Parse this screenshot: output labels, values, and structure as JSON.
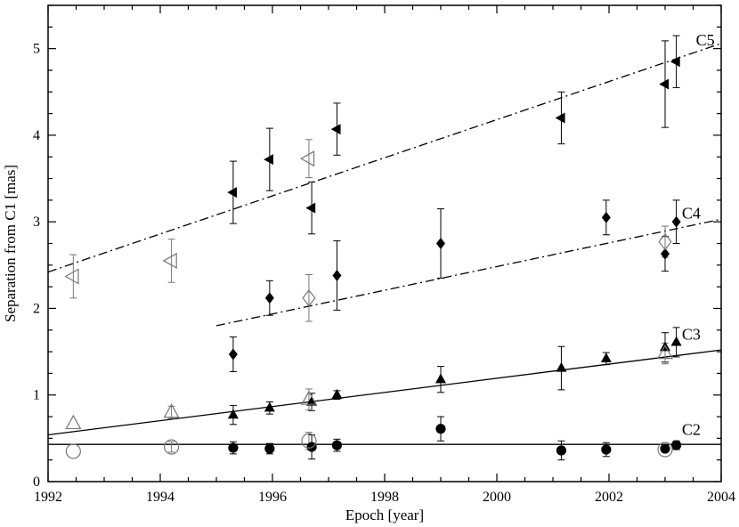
{
  "chart_data": {
    "type": "scatter",
    "title": "",
    "xlabel": "Epoch [year]",
    "ylabel": "Separation from C1 [mas]",
    "xlim": [
      1992,
      2004
    ],
    "ylim": [
      0,
      5.5
    ],
    "xticks": [
      1992,
      1994,
      1996,
      1998,
      2000,
      2002,
      2004
    ],
    "xtick_labels": [
      "1992",
      "1994",
      "1996",
      "1998",
      "2000",
      "2002",
      "2004"
    ],
    "yticks": [
      0,
      1,
      2,
      3,
      4,
      5
    ],
    "ytick_labels": [
      "0",
      "1",
      "2",
      "3",
      "4",
      "5"
    ],
    "grid": false,
    "legend": "none",
    "series": [
      {
        "name": "C2",
        "color": "#000000",
        "marker": "circle",
        "label_position": [
          2003.3,
          0.6
        ],
        "fit_line": {
          "style": "solid",
          "x": [
            1992,
            2004
          ],
          "y": [
            0.43,
            0.43
          ]
        },
        "points": [
          {
            "x": 1995.3,
            "y": 0.39,
            "err": 0.07,
            "filled": true
          },
          {
            "x": 1995.95,
            "y": 0.38,
            "err": 0.06,
            "filled": true
          },
          {
            "x": 1996.7,
            "y": 0.4,
            "err": 0.14,
            "filled": true
          },
          {
            "x": 1997.15,
            "y": 0.42,
            "err": 0.07,
            "filled": true
          },
          {
            "x": 1999.0,
            "y": 0.61,
            "err": 0.14,
            "filled": true
          },
          {
            "x": 2001.15,
            "y": 0.36,
            "err": 0.11,
            "filled": true
          },
          {
            "x": 2001.95,
            "y": 0.37,
            "err": 0.08,
            "filled": true
          },
          {
            "x": 2003.0,
            "y": 0.38,
            "err": 0.04,
            "filled": true
          },
          {
            "x": 2003.2,
            "y": 0.42,
            "err": 0.05,
            "filled": true
          },
          {
            "x": 1992.45,
            "y": 0.35,
            "err": 0.0,
            "filled": false
          },
          {
            "x": 1994.2,
            "y": 0.4,
            "err": 0.06,
            "filled": false
          },
          {
            "x": 1996.65,
            "y": 0.47,
            "err": 0.1,
            "filled": false
          },
          {
            "x": 2003.0,
            "y": 0.37,
            "err": 0.0,
            "filled": false
          }
        ]
      },
      {
        "name": "C3",
        "color": "#000000",
        "marker": "triangle-up",
        "label_position": [
          2003.3,
          1.7
        ],
        "fit_line": {
          "style": "solid",
          "x": [
            1992,
            2004
          ],
          "y": [
            0.54,
            1.52
          ]
        },
        "points": [
          {
            "x": 1995.3,
            "y": 0.77,
            "err": 0.11,
            "filled": true
          },
          {
            "x": 1995.95,
            "y": 0.85,
            "err": 0.07,
            "filled": true
          },
          {
            "x": 1996.7,
            "y": 0.92,
            "err": 0.1,
            "filled": true
          },
          {
            "x": 1997.15,
            "y": 1.0,
            "err": 0.05,
            "filled": true
          },
          {
            "x": 1999.0,
            "y": 1.18,
            "err": 0.15,
            "filled": true
          },
          {
            "x": 2001.15,
            "y": 1.31,
            "err": 0.25,
            "filled": true
          },
          {
            "x": 2001.95,
            "y": 1.42,
            "err": 0.07,
            "filled": true
          },
          {
            "x": 2003.0,
            "y": 1.55,
            "err": 0.17,
            "filled": true
          },
          {
            "x": 2003.2,
            "y": 1.61,
            "err": 0.17,
            "filled": true
          },
          {
            "x": 1992.45,
            "y": 0.67,
            "err": 0.0,
            "filled": false
          },
          {
            "x": 1994.2,
            "y": 0.8,
            "err": 0.07,
            "filled": false
          },
          {
            "x": 1996.65,
            "y": 0.95,
            "err": 0.12,
            "filled": false
          },
          {
            "x": 2003.0,
            "y": 1.48,
            "err": 0.12,
            "filled": false
          }
        ]
      },
      {
        "name": "C4",
        "color": "#000000",
        "marker": "diamond",
        "label_position": [
          2003.3,
          3.1
        ],
        "fit_line": {
          "style": "dash-dot",
          "x": [
            1995,
            2004
          ],
          "y": [
            1.8,
            3.03
          ]
        },
        "points": [
          {
            "x": 1995.3,
            "y": 1.47,
            "err": 0.2,
            "filled": true
          },
          {
            "x": 1995.95,
            "y": 2.12,
            "err": 0.2,
            "filled": true
          },
          {
            "x": 1997.15,
            "y": 2.38,
            "err": 0.4,
            "filled": true
          },
          {
            "x": 1999.0,
            "y": 2.75,
            "err": 0.4,
            "filled": true
          },
          {
            "x": 2001.95,
            "y": 3.05,
            "err": 0.2,
            "filled": true
          },
          {
            "x": 2003.0,
            "y": 2.63,
            "err": 0.2,
            "filled": true
          },
          {
            "x": 2003.2,
            "y": 3.0,
            "err": 0.25,
            "filled": true
          },
          {
            "x": 1996.65,
            "y": 2.12,
            "err": 0.27,
            "filled": false
          },
          {
            "x": 2003.0,
            "y": 2.77,
            "err": 0.18,
            "filled": false
          }
        ]
      },
      {
        "name": "C5",
        "color": "#000000",
        "marker": "triangle-left",
        "label_position": [
          2003.55,
          5.1
        ],
        "fit_line": {
          "style": "dash-dot",
          "x": [
            1992,
            2004
          ],
          "y": [
            2.42,
            5.06
          ]
        },
        "points": [
          {
            "x": 1995.3,
            "y": 3.34,
            "err": 0.36,
            "filled": true
          },
          {
            "x": 1995.95,
            "y": 3.72,
            "err": 0.36,
            "filled": true
          },
          {
            "x": 1996.7,
            "y": 3.16,
            "err": 0.3,
            "filled": true
          },
          {
            "x": 1997.15,
            "y": 4.07,
            "err": 0.3,
            "filled": true
          },
          {
            "x": 2001.15,
            "y": 4.2,
            "err": 0.3,
            "filled": true
          },
          {
            "x": 2003.0,
            "y": 4.59,
            "err": 0.5,
            "filled": true
          },
          {
            "x": 2003.2,
            "y": 4.85,
            "err": 0.3,
            "filled": true
          },
          {
            "x": 1992.45,
            "y": 2.37,
            "err": 0.25,
            "filled": false
          },
          {
            "x": 1994.2,
            "y": 2.55,
            "err": 0.25,
            "filled": false
          },
          {
            "x": 1996.65,
            "y": 3.73,
            "err": 0.22,
            "filled": false
          }
        ]
      }
    ]
  }
}
